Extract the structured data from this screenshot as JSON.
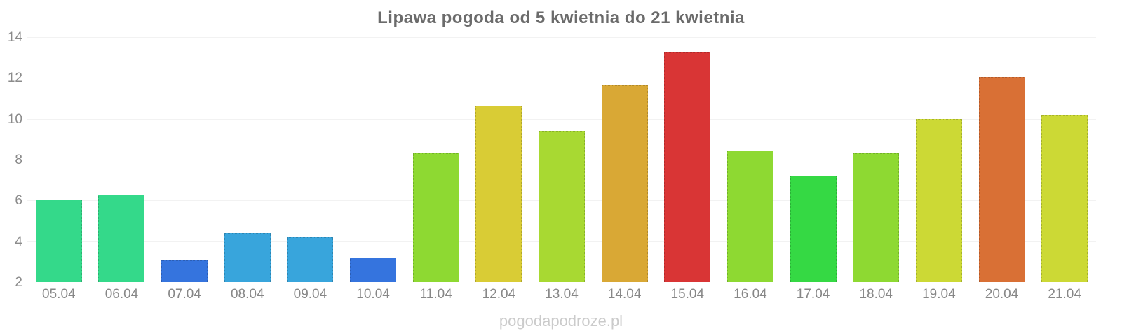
{
  "title": "Lipawa pogoda od 5 kwietnia do 21 kwietnia",
  "watermark": "pogodapodroze.pl",
  "colors": {
    "background": "#ffffff",
    "title_text": "#6b6b6b",
    "axis_label_text": "#8b8b8b",
    "x_label_text": "#878787",
    "axis_line": "#cccccc",
    "gridline": "#f2f2f2",
    "watermark_text": "#cbcbcb"
  },
  "chart_data": {
    "type": "bar",
    "title": "Lipawa pogoda od 5 kwietnia do 21 kwietnia",
    "xlabel": "",
    "ylabel": "",
    "ylim": [
      2,
      14
    ],
    "yticks": [
      2,
      4,
      6,
      8,
      10,
      12,
      14
    ],
    "grid": true,
    "legend": false,
    "categories": [
      "05.04",
      "06.04",
      "07.04",
      "08.04",
      "09.04",
      "10.04",
      "11.04",
      "12.04",
      "13.04",
      "14.04",
      "15.04",
      "16.04",
      "17.04",
      "18.04",
      "19.04",
      "20.04",
      "21.04"
    ],
    "values": [
      6.05,
      6.3,
      3.05,
      4.4,
      4.2,
      3.2,
      8.3,
      10.65,
      9.4,
      11.65,
      13.25,
      8.45,
      7.2,
      8.3,
      10.0,
      12.05,
      10.2
    ],
    "bar_colors": [
      "#34d98a",
      "#34d98a",
      "#3574de",
      "#38a5dc",
      "#38a5dc",
      "#3574de",
      "#8ed932",
      "#d9cc35",
      "#a8d932",
      "#d9a835",
      "#d93535",
      "#8ed932",
      "#35d944",
      "#8ed932",
      "#ccd935",
      "#d97035",
      "#ccd935"
    ]
  }
}
